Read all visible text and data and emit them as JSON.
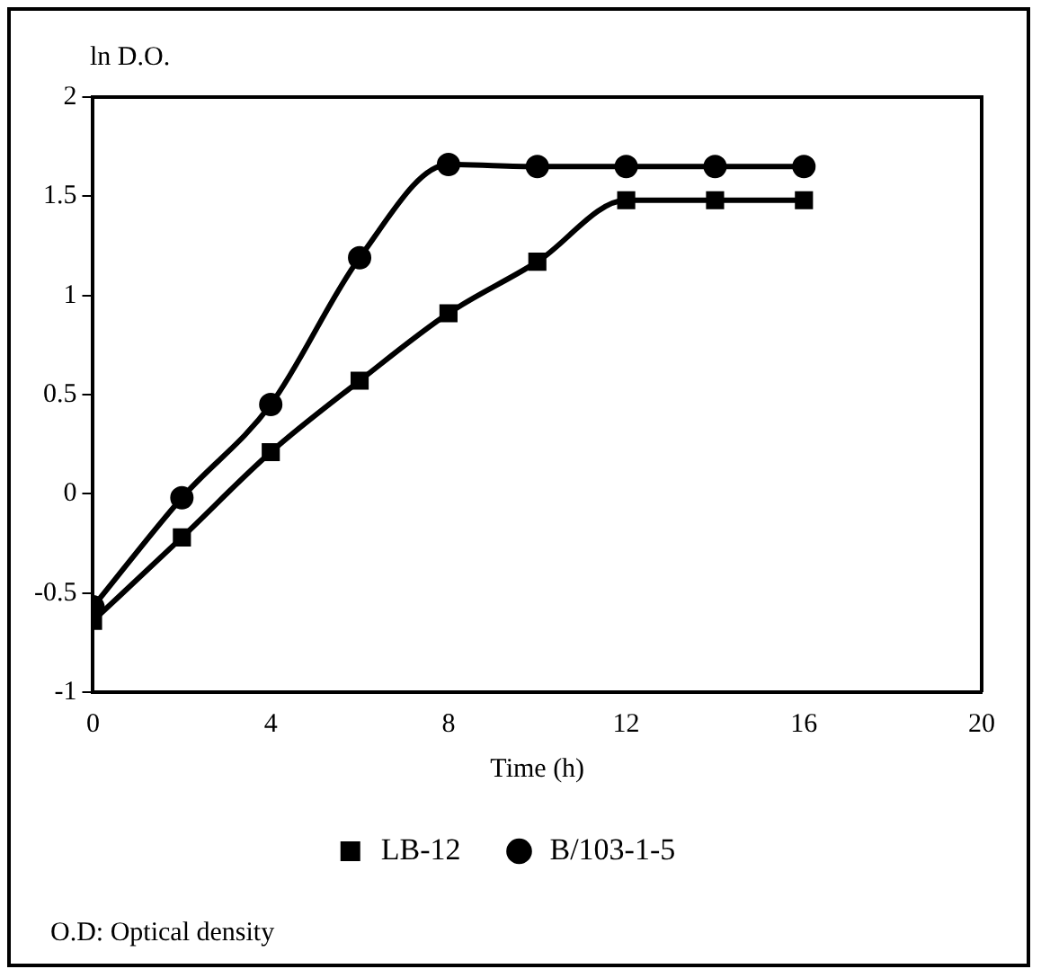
{
  "chart_data": {
    "type": "line",
    "ylabel": "ln D.O.",
    "xlabel": "Time (h)",
    "x": [
      0,
      2,
      4,
      6,
      8,
      10,
      12,
      14,
      16
    ],
    "series": [
      {
        "name": "LB-12",
        "color": "#000000",
        "marker": "square",
        "values": [
          -0.64,
          -0.22,
          0.21,
          0.57,
          0.91,
          1.17,
          1.48,
          1.48,
          1.48
        ]
      },
      {
        "name": "B/103-1-5",
        "color": "#000000",
        "marker": "circle",
        "values": [
          -0.57,
          -0.02,
          0.45,
          1.19,
          1.66,
          1.65,
          1.65,
          1.65,
          1.65
        ]
      }
    ],
    "xlim": [
      0,
      20
    ],
    "xticks": [
      0,
      4,
      8,
      12,
      16,
      20
    ],
    "ylim": [
      -1,
      2
    ],
    "yticks": [
      -1,
      -0.5,
      0,
      0.5,
      1,
      1.5,
      2
    ],
    "grid": false,
    "legend": "bottom",
    "line_style": "solid",
    "annotations": [
      "O.D: Optical density"
    ]
  }
}
